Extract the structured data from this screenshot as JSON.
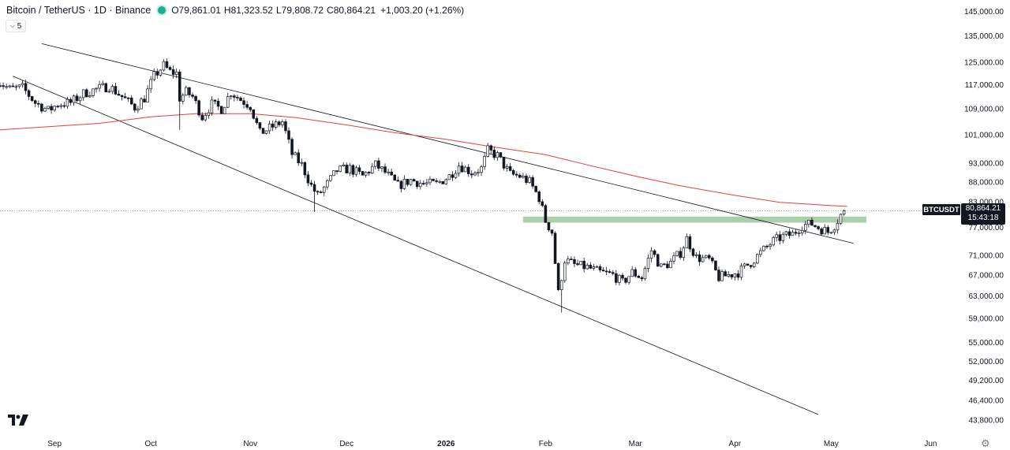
{
  "header": {
    "title": "Bitcoin / TetherUS · 1D · Binance",
    "open": "O79,861.01",
    "high": "H81,323.52",
    "low": "L79,808.72",
    "close": "C80,864.21",
    "change": "+1,003.20 (+1.26%)",
    "indicator_count": "5"
  },
  "colors": {
    "candle": "#131722",
    "ma_line": "#e0433d",
    "zone": "#8fbf8f",
    "trendline": "#131722",
    "status_dot": "#22ab94"
  },
  "icons": {
    "logo": "tradingview-logo-icon",
    "settings": "gear-icon",
    "indicators": "chevron-down-icon"
  },
  "price_tag": {
    "symbol": "BTCUSDT",
    "price": "80,864.21",
    "countdown": "15:43:18"
  },
  "chart_data": {
    "type": "candlestick",
    "symbol": "BTCUSDT",
    "timeframe": "1D",
    "scale": "log",
    "y_ticks": [
      43800,
      46400,
      49200,
      52000,
      55000,
      59000,
      63000,
      67000,
      71000,
      77000,
      83000,
      88000,
      93000,
      101000,
      109000,
      117000,
      125000,
      135000,
      145000
    ],
    "y_tick_labels": [
      "43,800.00",
      "46,400.00",
      "49,200.00",
      "52,000.00",
      "55,000.00",
      "59,000.00",
      "63,000.00",
      "67,000.00",
      "71,000.00",
      "77,000.00",
      "83,000.00",
      "88,000.00",
      "93,000.00",
      "101,000.00",
      "109,000.00",
      "117,000.00",
      "125,000.00",
      "135,000.00",
      "145,000.00"
    ],
    "ylim": [
      42000,
      150000
    ],
    "x_start": "2025-08-15",
    "x_end": "2026-06-10",
    "x_ticks": [
      {
        "date": "2025-09-01",
        "label": "Sep"
      },
      {
        "date": "2025-10-01",
        "label": "Oct"
      },
      {
        "date": "2025-11-01",
        "label": "Nov"
      },
      {
        "date": "2025-12-01",
        "label": "Dec"
      },
      {
        "date": "2026-01-01",
        "label": "2026"
      },
      {
        "date": "2026-02-01",
        "label": "Feb"
      },
      {
        "date": "2026-03-01",
        "label": "Mar"
      },
      {
        "date": "2026-04-01",
        "label": "Apr"
      },
      {
        "date": "2026-05-01",
        "label": "May"
      },
      {
        "date": "2026-06-01",
        "label": "Jun"
      }
    ],
    "last_price": 80864.21,
    "close_path": [
      [
        "2025-08-14",
        118500
      ],
      [
        "2025-08-18",
        115500
      ],
      [
        "2025-08-22",
        116000
      ],
      [
        "2025-08-26",
        111000
      ],
      [
        "2025-08-30",
        108500
      ],
      [
        "2025-09-02",
        110500
      ],
      [
        "2025-09-06",
        111000
      ],
      [
        "2025-09-10",
        114000
      ],
      [
        "2025-09-14",
        115500
      ],
      [
        "2025-09-18",
        116500
      ],
      [
        "2025-09-22",
        113000
      ],
      [
        "2025-09-26",
        109500
      ],
      [
        "2025-09-29",
        112500
      ],
      [
        "2025-10-02",
        120000
      ],
      [
        "2025-10-05",
        123800
      ],
      [
        "2025-10-07",
        121500
      ],
      [
        "2025-10-09",
        121000
      ],
      [
        "2025-10-10",
        112500
      ],
      [
        "2025-10-12",
        114500
      ],
      [
        "2025-10-14",
        113000
      ],
      [
        "2025-10-17",
        106500
      ],
      [
        "2025-10-20",
        110500
      ],
      [
        "2025-10-23",
        109000
      ],
      [
        "2025-10-26",
        114500
      ],
      [
        "2025-10-29",
        112000
      ],
      [
        "2025-11-01",
        110000
      ],
      [
        "2025-11-04",
        101500
      ],
      [
        "2025-11-07",
        103000
      ],
      [
        "2025-11-11",
        105000
      ],
      [
        "2025-11-14",
        95500
      ],
      [
        "2025-11-17",
        92500
      ],
      [
        "2025-11-20",
        87000
      ],
      [
        "2025-11-22",
        84500
      ],
      [
        "2025-11-25",
        87500
      ],
      [
        "2025-11-28",
        91000
      ],
      [
        "2025-12-02",
        91500
      ],
      [
        "2025-12-06",
        89500
      ],
      [
        "2025-12-10",
        92500
      ],
      [
        "2025-12-13",
        90500
      ],
      [
        "2025-12-17",
        87000
      ],
      [
        "2025-12-21",
        88500
      ],
      [
        "2025-12-25",
        87500
      ],
      [
        "2025-12-29",
        87500
      ],
      [
        "2026-01-02",
        89500
      ],
      [
        "2026-01-05",
        92500
      ],
      [
        "2026-01-09",
        90500
      ],
      [
        "2026-01-12",
        91500
      ],
      [
        "2026-01-14",
        96500
      ],
      [
        "2026-01-17",
        95000
      ],
      [
        "2026-01-21",
        90000
      ],
      [
        "2026-01-24",
        89500
      ],
      [
        "2026-01-27",
        88000
      ],
      [
        "2026-01-30",
        84000
      ],
      [
        "2026-02-01",
        78500
      ],
      [
        "2026-02-03",
        76000
      ],
      [
        "2026-02-05",
        63500
      ],
      [
        "2026-02-07",
        70000
      ],
      [
        "2026-02-10",
        69000
      ],
      [
        "2026-02-14",
        68500
      ],
      [
        "2026-02-18",
        67500
      ],
      [
        "2026-02-22",
        67000
      ],
      [
        "2026-02-25",
        65500
      ],
      [
        "2026-02-28",
        67500
      ],
      [
        "2026-03-03",
        66500
      ],
      [
        "2026-03-06",
        72000
      ],
      [
        "2026-03-09",
        68500
      ],
      [
        "2026-03-12",
        69500
      ],
      [
        "2026-03-15",
        71500
      ],
      [
        "2026-03-17",
        74500
      ],
      [
        "2026-03-20",
        70500
      ],
      [
        "2026-03-24",
        70000
      ],
      [
        "2026-03-27",
        66500
      ],
      [
        "2026-03-30",
        67000
      ],
      [
        "2026-04-02",
        67500
      ],
      [
        "2026-04-06",
        69500
      ],
      [
        "2026-04-09",
        71500
      ],
      [
        "2026-04-13",
        74000
      ],
      [
        "2026-04-16",
        75000
      ],
      [
        "2026-04-19",
        75500
      ],
      [
        "2026-04-22",
        77500
      ],
      [
        "2026-04-25",
        77800
      ],
      [
        "2026-04-27",
        77000
      ],
      [
        "2026-04-30",
        76000
      ],
      [
        "2026-05-02",
        77500
      ],
      [
        "2026-05-04",
        79900
      ],
      [
        "2026-05-05",
        80864
      ]
    ],
    "moving_average": {
      "color": "#e0433d",
      "points": [
        [
          "2025-08-15",
          102500
        ],
        [
          "2025-09-15",
          104500
        ],
        [
          "2025-10-01",
          106500
        ],
        [
          "2025-10-15",
          107500
        ],
        [
          "2025-11-01",
          107500
        ],
        [
          "2025-11-15",
          106300
        ],
        [
          "2025-12-01",
          104000
        ],
        [
          "2025-12-15",
          101800
        ],
        [
          "2026-01-01",
          99700
        ],
        [
          "2026-01-15",
          97600
        ],
        [
          "2026-02-01",
          95300
        ],
        [
          "2026-02-15",
          92300
        ],
        [
          "2026-03-01",
          89500
        ],
        [
          "2026-03-15",
          87000
        ],
        [
          "2026-04-01",
          84600
        ],
        [
          "2026-04-15",
          82900
        ],
        [
          "2026-05-01",
          82100
        ],
        [
          "2026-05-06",
          81900
        ]
      ]
    },
    "trendlines": [
      {
        "from": [
          "2025-08-28",
          132000
        ],
        "to": [
          "2026-05-08",
          73500
        ]
      },
      {
        "from": [
          "2025-08-19",
          120000
        ],
        "to": [
          "2026-04-27",
          44500
        ]
      }
    ],
    "zones": [
      {
        "from_date": "2026-01-25",
        "to_date": "2026-05-12",
        "low": 78100,
        "high": 79500,
        "color": "#8fbf8f"
      }
    ]
  }
}
